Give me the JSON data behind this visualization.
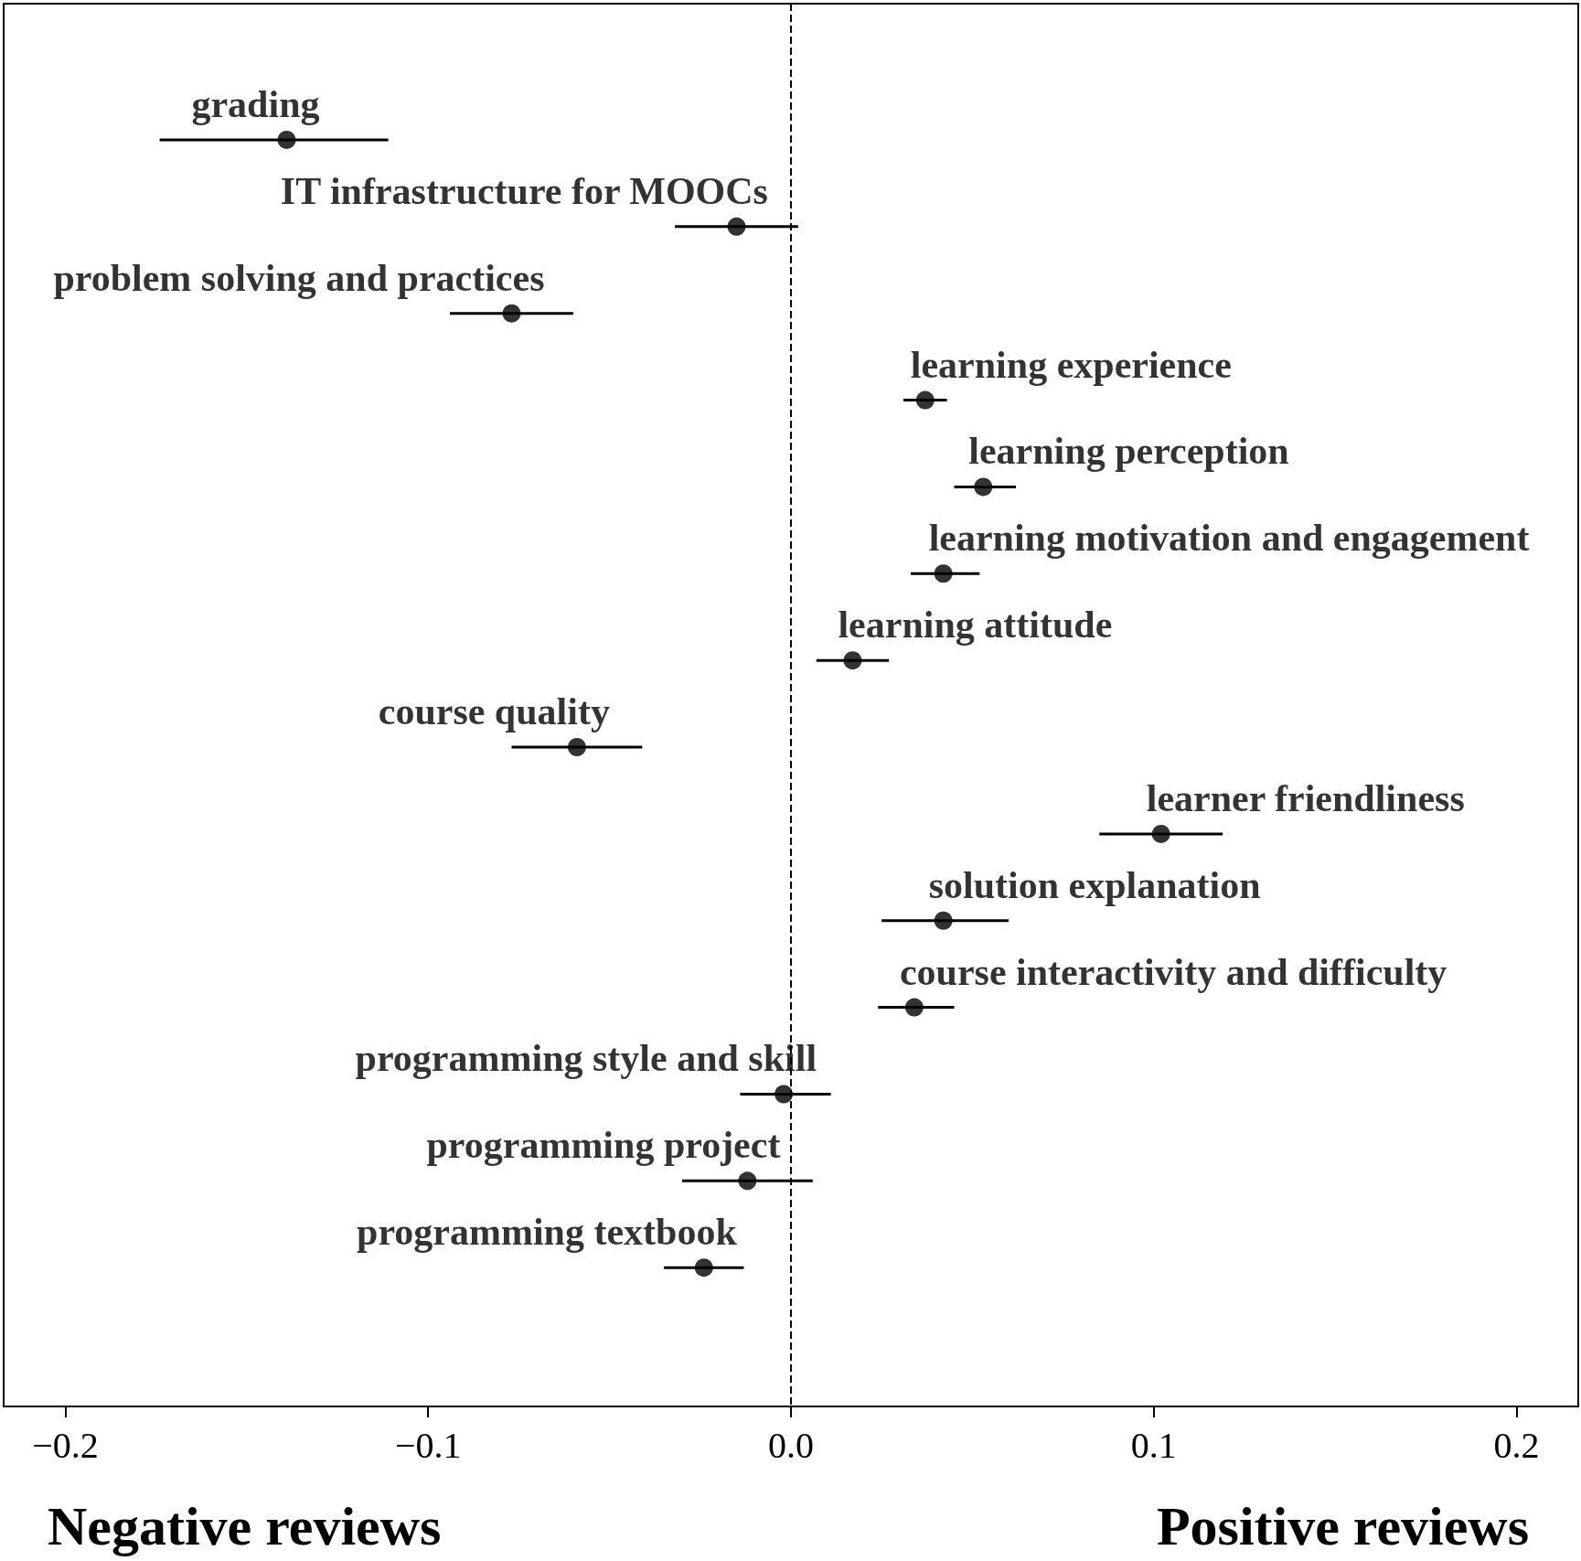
{
  "chart_data": {
    "type": "scatter",
    "orientation": "horizontal",
    "categories": [
      "grading",
      "IT infrastructure for MOOCs",
      "problem solving and practices",
      "learning experience",
      "learning perception",
      "learning motivation and engagement",
      "learning attitude",
      "course quality",
      "learner friendliness",
      "solution explanation",
      "course interactivity and difficulty",
      "programming style and skill",
      "programming project",
      "programming textbook"
    ],
    "values": [
      -0.139,
      -0.015,
      -0.077,
      0.037,
      0.053,
      0.042,
      0.017,
      -0.059,
      0.102,
      0.042,
      0.034,
      -0.002,
      -0.012,
      -0.024
    ],
    "errors": [
      [
        -0.174,
        -0.111
      ],
      [
        -0.032,
        0.002
      ],
      [
        -0.094,
        -0.06
      ],
      [
        0.031,
        0.043
      ],
      [
        0.045,
        0.062
      ],
      [
        0.033,
        0.052
      ],
      [
        0.007,
        0.027
      ],
      [
        -0.077,
        -0.041
      ],
      [
        0.085,
        0.119
      ],
      [
        0.025,
        0.06
      ],
      [
        0.024,
        0.045
      ],
      [
        -0.014,
        0.011
      ],
      [
        -0.03,
        0.006
      ],
      [
        -0.035,
        -0.013
      ]
    ],
    "color": "#000000",
    "marker": "circle",
    "xlim": [
      -0.217,
      0.217
    ],
    "xticks": [
      {
        "value": -0.2,
        "label": "−0.2"
      },
      {
        "value": -0.1,
        "label": "−0.1"
      },
      {
        "value": 0,
        "label": "0.0"
      },
      0.1,
      0.2
    ],
    "ref_lines": [
      {
        "axis": "x",
        "value": 0,
        "line_style": "dashed"
      }
    ],
    "annotations": [
      "Negative reviews",
      "Positive reviews"
    ],
    "tick_labels": "x",
    "grid": false
  }
}
